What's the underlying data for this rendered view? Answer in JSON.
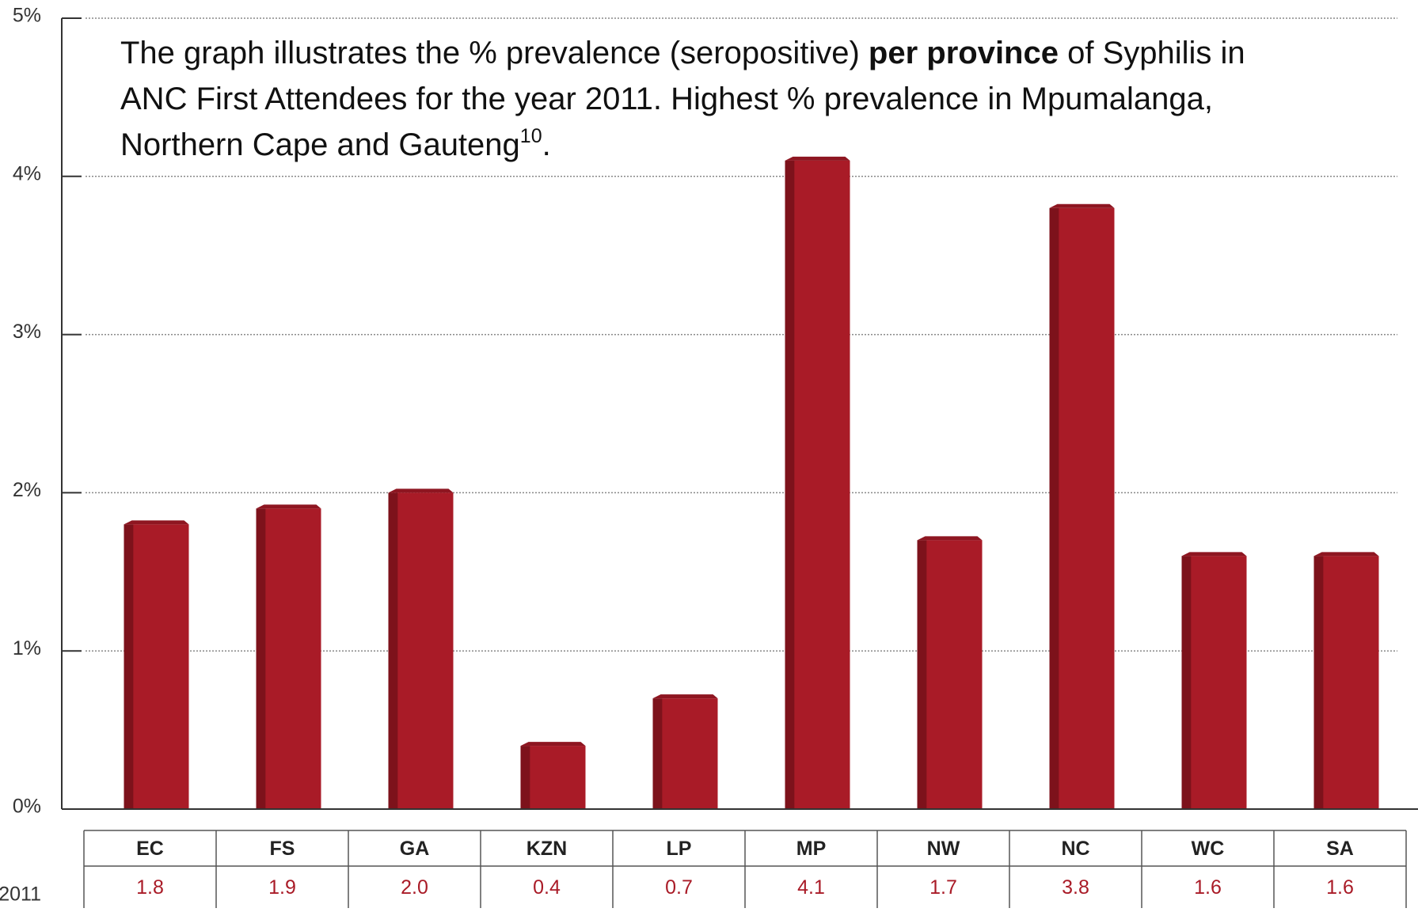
{
  "chart_data": {
    "type": "bar",
    "annotation": [
      "The graph illustrates the % prevalence (seropositive) ",
      "per province",
      " of Syphilis in",
      "ANC First Attendees for the year 2011. Highest % prevalence in Mpumalanga,",
      "Northern Cape and Gauteng",
      "10",
      "."
    ],
    "categories": [
      "EC",
      "FS",
      "GA",
      "KZN",
      "LP",
      "MP",
      "NW",
      "NC",
      "WC",
      "SA"
    ],
    "series": [
      {
        "name": "2011",
        "color": "#a91b27",
        "values": [
          1.8,
          1.9,
          2.0,
          0.4,
          0.7,
          4.1,
          1.7,
          3.8,
          1.6,
          1.6
        ],
        "value_labels": [
          "1.8",
          "1.9",
          "2.0",
          "0.4",
          "0.7",
          "4.1",
          "1.7",
          "3.8",
          "1.6",
          "1.6"
        ]
      }
    ],
    "ylim": [
      0,
      5
    ],
    "yticks": [
      {
        "value": 0,
        "label": "0%"
      },
      {
        "value": 1,
        "label": "1%"
      },
      {
        "value": 2,
        "label": "2%"
      },
      {
        "value": 3,
        "label": "3%"
      },
      {
        "value": 4,
        "label": "4%"
      },
      {
        "value": 5,
        "label": "5%"
      }
    ],
    "grid": true
  }
}
